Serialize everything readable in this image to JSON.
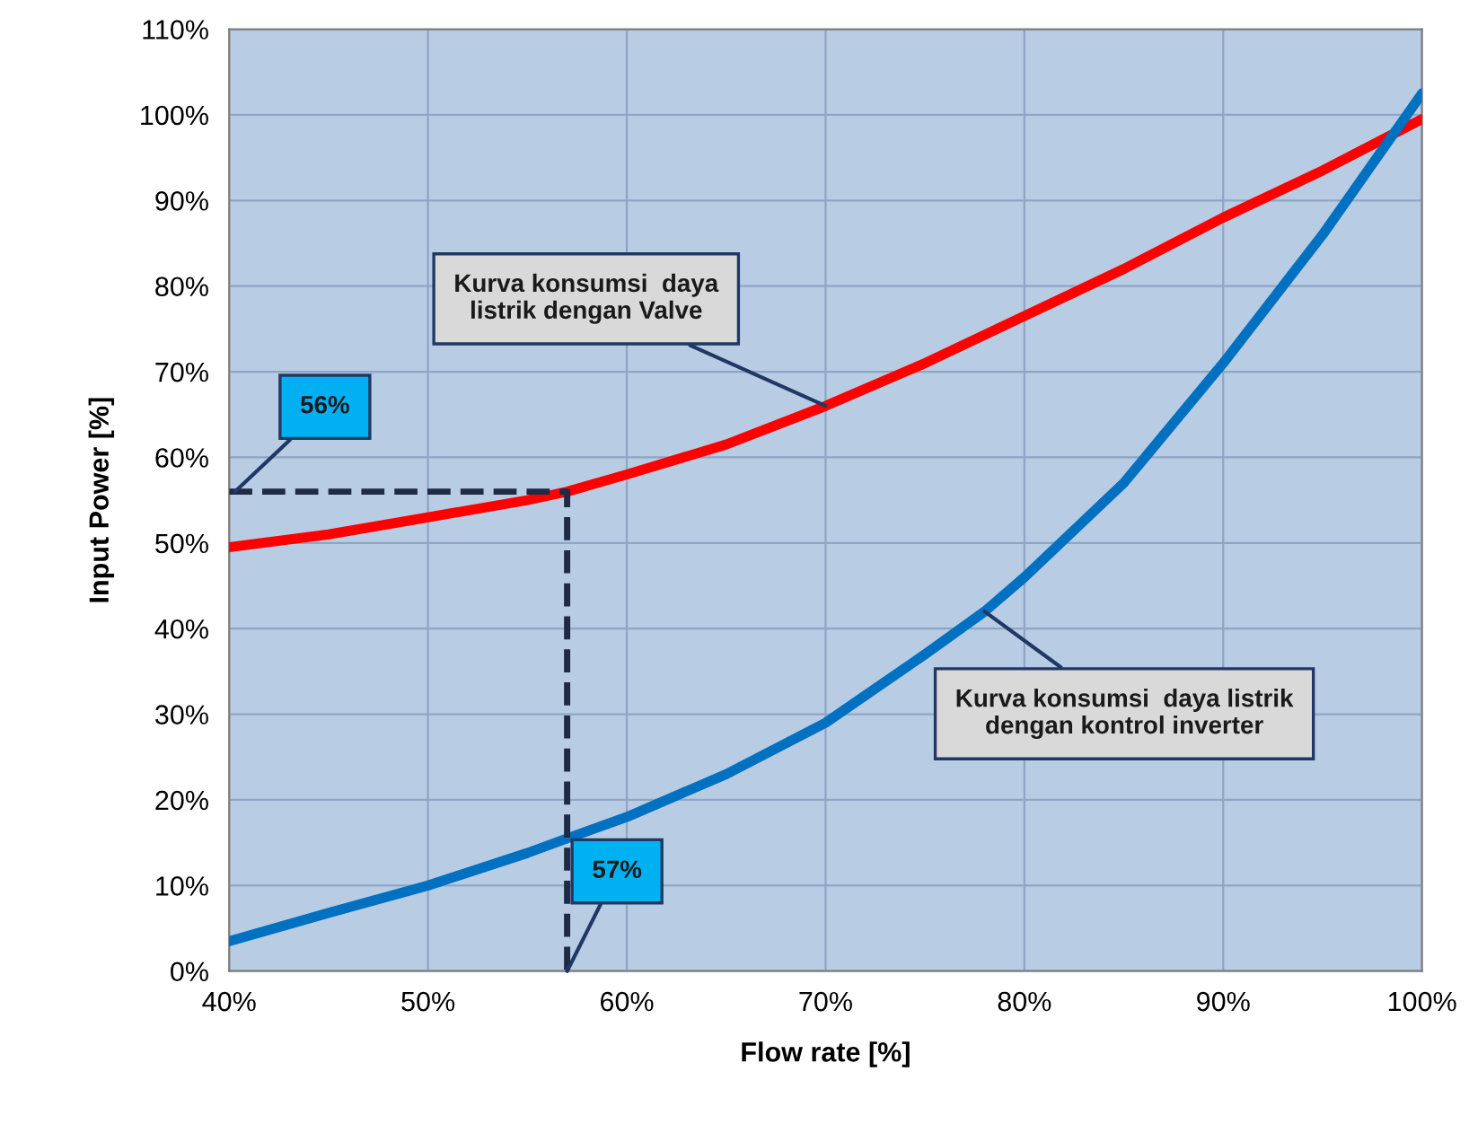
{
  "chart_data": {
    "type": "line",
    "xlabel": "Flow rate [%]",
    "ylabel": "Input Power [%]",
    "series": [
      {
        "color": "#ff0000",
        "x": [
          40,
          45,
          50,
          55,
          57,
          60,
          65,
          70,
          75,
          80,
          85,
          90,
          95,
          100
        ],
        "values": [
          49.5,
          51,
          53,
          55,
          56,
          58,
          61.5,
          66,
          71,
          76.5,
          82,
          88,
          93.5,
          99.5
        ]
      },
      {
        "color": "#0070c0",
        "x": [
          40,
          45,
          50,
          55,
          57,
          60,
          65,
          70,
          75,
          78,
          80,
          85,
          90,
          95,
          100
        ],
        "values": [
          3.5,
          6.8,
          10,
          13.8,
          15.5,
          18,
          23,
          29,
          37,
          42,
          46,
          57,
          71,
          86,
          102.5
        ]
      },
      {
        "color": "#1f2a44",
        "type": "line",
        "line_style": "dashed",
        "x": [
          40,
          57,
          57
        ],
        "values": [
          56,
          56,
          0
        ]
      }
    ],
    "annotations": [
      {
        "text": "56%",
        "x": 40.3,
        "y": 56
      },
      {
        "text": "57%",
        "x": 57,
        "y": 0
      },
      {
        "text": "Kurva konsumsi  daya\nlistrik dengan Valve",
        "x": 70,
        "y": 66
      },
      {
        "text": "Kurva konsumsi  daya listrik\ndengan kontrol inverter",
        "x": 78,
        "y": 42
      }
    ],
    "xlim": [
      40,
      100
    ],
    "xticks": [
      {
        "value": 40,
        "label": "40%"
      },
      {
        "value": 50,
        "label": "50%"
      },
      {
        "value": 60,
        "label": "60%"
      },
      {
        "value": 70,
        "label": "70%"
      },
      {
        "value": 80,
        "label": "80%"
      },
      {
        "value": 90,
        "label": "90%"
      },
      {
        "value": 100,
        "label": "100%"
      }
    ],
    "ylim": [
      0,
      110
    ],
    "yticks": [
      {
        "value": 0,
        "label": "0%"
      },
      {
        "value": 10,
        "label": "10%"
      },
      {
        "value": 20,
        "label": "20%"
      },
      {
        "value": 30,
        "label": "30%"
      },
      {
        "value": 40,
        "label": "40%"
      },
      {
        "value": 50,
        "label": "50%"
      },
      {
        "value": 60,
        "label": "60%"
      },
      {
        "value": 70,
        "label": "70%"
      },
      {
        "value": 80,
        "label": "80%"
      },
      {
        "value": 90,
        "label": "90%"
      },
      {
        "value": 100,
        "label": "100%"
      },
      {
        "value": 110,
        "label": "110%"
      }
    ],
    "grid": true,
    "line_style": "solid",
    "marker": "none"
  }
}
